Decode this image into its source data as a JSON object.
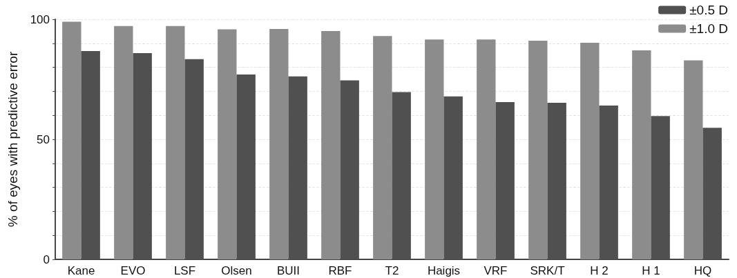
{
  "chart_data": {
    "type": "bar",
    "ylabel": "% of eyes with predictive error",
    "categories": [
      "Kane",
      "EVO",
      "LSF",
      "Olsen",
      "BUII",
      "RBF",
      "T2",
      "Haigis",
      "VRF",
      "SRK/T",
      "H 2",
      "H 1",
      "HQ"
    ],
    "series": [
      {
        "name": "±1.0 D",
        "color": "#8c8c8c",
        "values": [
          99,
          97.2,
          97.2,
          95.8,
          96,
          95.1,
          93,
          91.6,
          91.6,
          91.1,
          90.2,
          87.1,
          82.9
        ]
      },
      {
        "name": "±0.5 D",
        "color": "#505050",
        "values": [
          86.8,
          85.9,
          83.4,
          77,
          76.2,
          74.6,
          69.7,
          67.9,
          65.5,
          65.2,
          64.1,
          59.7,
          54.8
        ]
      }
    ],
    "ylim": [
      0,
      100
    ],
    "yticks": [
      0,
      {
        "value": 10,
        "label": null
      },
      {
        "value": 20,
        "label": null
      },
      {
        "value": 30,
        "label": null
      },
      {
        "value": 40,
        "label": null
      },
      50,
      {
        "value": 60,
        "label": null
      },
      {
        "value": 70,
        "label": null
      },
      {
        "value": 80,
        "label": null
      },
      {
        "value": 90,
        "label": null
      },
      100
    ],
    "grid": "y",
    "legend": "top right"
  }
}
